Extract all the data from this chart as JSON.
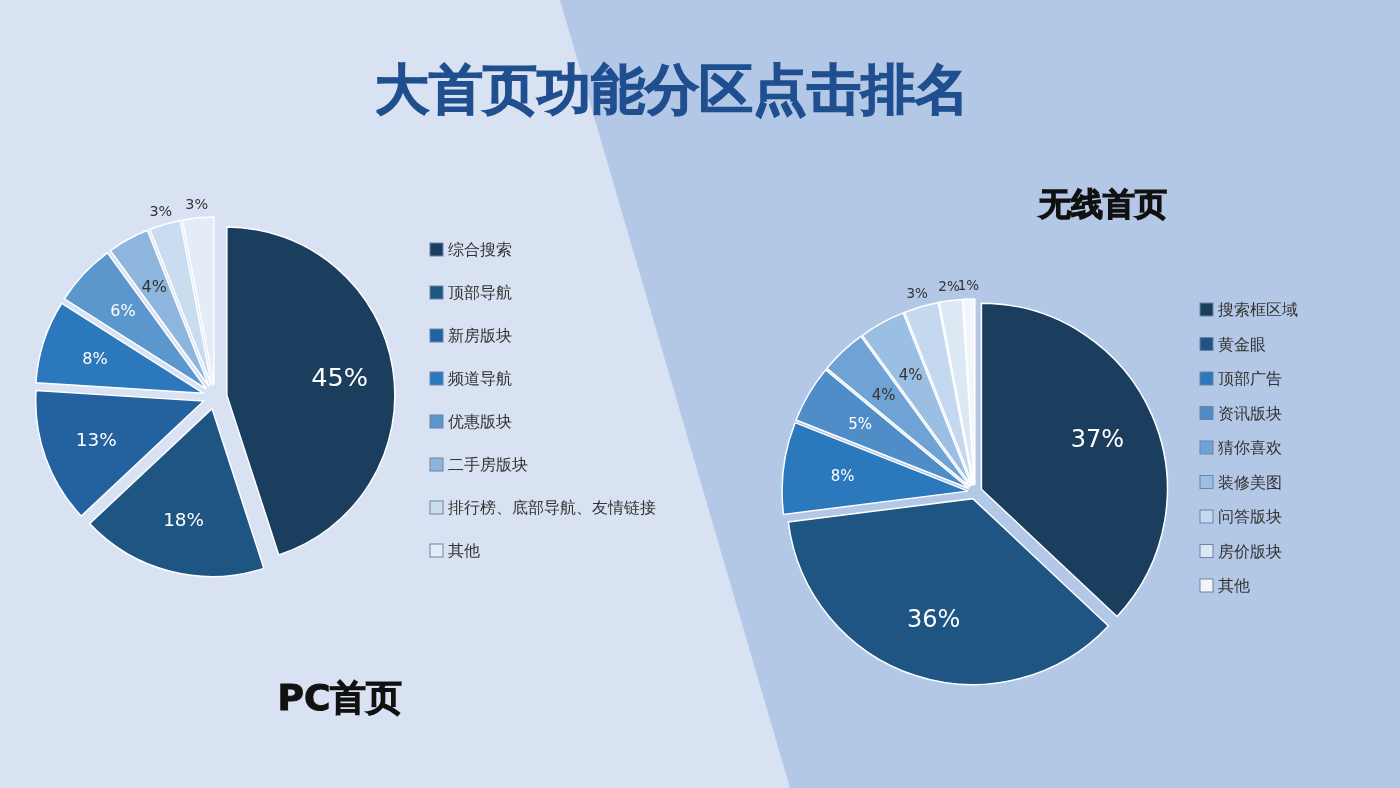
{
  "chart_data": [
    {
      "type": "pie",
      "title": "大首页功能分区点击排名",
      "subtitle": "PC首页",
      "categories": [
        "综合搜索",
        "顶部导航",
        "新房版块",
        "频道导航",
        "优惠版块",
        "二手房版块",
        "排行榜、底部导航、友情链接",
        "其他"
      ],
      "values": [
        45,
        18,
        13,
        8,
        6,
        4,
        3,
        3
      ],
      "colors": [
        "#1b3d5e",
        "#1f5583",
        "#23629f",
        "#2b78bd",
        "#5b96cd",
        "#8db5de",
        "#cadcf0",
        "#e4edf7"
      ],
      "value_labels": [
        "45%",
        "18%",
        "13%",
        "8%",
        "6%",
        "4%",
        "3%",
        "3%"
      ],
      "legend": "right"
    },
    {
      "type": "pie",
      "title": "无线首页",
      "categories": [
        "搜索框区域",
        "黄金眼",
        "顶部广告",
        "资讯版块",
        "猜你喜欢",
        "装修美图",
        "问答版块",
        "房价版块",
        "其他"
      ],
      "values": [
        37,
        36,
        8,
        5,
        4,
        4,
        3,
        2,
        1
      ],
      "colors": [
        "#1b3d5e",
        "#1f5583",
        "#2b78bd",
        "#4f8dc9",
        "#6fa3d6",
        "#9bbfe2",
        "#c4d9ef",
        "#dde8f5",
        "#f2f6fb"
      ],
      "value_labels": [
        "37%",
        "36%",
        "8%",
        "5%",
        "4%",
        "4%",
        "3%",
        "2%",
        "1%"
      ],
      "legend": "right"
    }
  ]
}
